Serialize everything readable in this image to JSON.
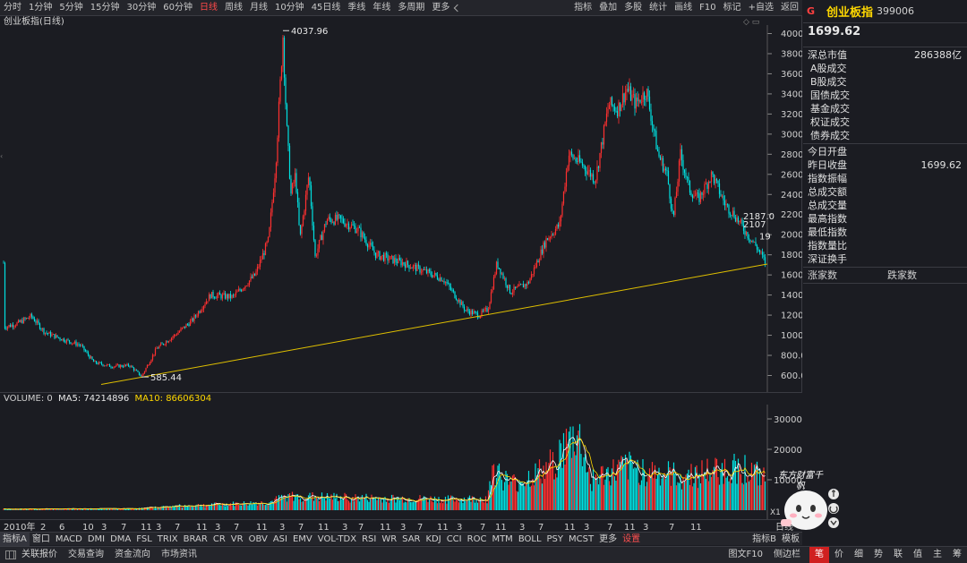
{
  "toolbar": {
    "periods": [
      "分时",
      "1分钟",
      "5分钟",
      "15分钟",
      "30分钟",
      "60分钟",
      "日线",
      "周线",
      "月线",
      "10分钟",
      "45日线",
      "季线",
      "年线",
      "多周期",
      "更多"
    ],
    "active_period": "日线",
    "right_items": [
      "指标",
      "叠加",
      "多股",
      "统计",
      "画线",
      "F10",
      "标记",
      "+自选",
      "返回"
    ]
  },
  "chart": {
    "title": "创业板指(日线)",
    "y_ticks": [
      "4000",
      "3800",
      "3600",
      "3400",
      "3200",
      "3000",
      "2800",
      "2600",
      "2400",
      "2200",
      "2000",
      "1800",
      "1600",
      "1400",
      "1200",
      "1000",
      "800.0",
      "600.0"
    ],
    "high_label": "4037.96",
    "low_label": "585.44",
    "right_labels": [
      "2187.0",
      "2107",
      "19"
    ],
    "ctrl_icons": "◇ ▭"
  },
  "volume": {
    "label": "VOLUME: 0",
    "ma5": "MA5: 74214896",
    "ma10": "MA10: 86606304",
    "y_ticks": [
      "30000",
      "20000",
      "10000"
    ],
    "unit": "X1"
  },
  "date_axis": {
    "labels": [
      "2010年",
      "2",
      "6",
      "10",
      "3",
      "7",
      "11",
      "3",
      "7",
      "11",
      "3",
      "7",
      "11",
      "3",
      "7",
      "11",
      "3",
      "7",
      "11",
      "3",
      "7",
      "11",
      "3",
      "7",
      "11",
      "3",
      "7",
      "11",
      "3",
      "7",
      "11",
      "3",
      "7",
      "11"
    ],
    "right": "日线"
  },
  "indicator_tabs": {
    "items": [
      "指标A",
      "窗口",
      "MACD",
      "DMI",
      "DMA",
      "FSL",
      "TRIX",
      "BRAR",
      "CR",
      "VR",
      "OBV",
      "ASI",
      "EMV",
      "VOL-TDX",
      "RSI",
      "WR",
      "SAR",
      "KDJ",
      "CCI",
      "ROC",
      "MTM",
      "BOLL",
      "PSY",
      "MCST",
      "更多"
    ],
    "settings": "设置",
    "right": [
      "指标B",
      "模板"
    ]
  },
  "statusbar": {
    "items": [
      "关联报价",
      "交易查询",
      "资金流向",
      "市场资讯"
    ],
    "right_items": [
      "图文F10",
      "侧边栏"
    ],
    "tabs": [
      "笔",
      "价",
      "细",
      "势",
      "联",
      "值",
      "主",
      "筹"
    ],
    "active_tab": "笔"
  },
  "panel": {
    "badge": "G",
    "name": "创业板指",
    "code": "399006",
    "price": "1699.62",
    "market_cap_label": "深总市值",
    "market_cap_value": "286388亿",
    "volume_rows": [
      "A股成交",
      "B股成交",
      "国债成交",
      "基金成交",
      "权证成交",
      "债券成交"
    ],
    "stats_rows": [
      {
        "label": "今日开盘",
        "value": ""
      },
      {
        "label": "昨日收盘",
        "value": "1699.62"
      },
      {
        "label": "指数振幅",
        "value": ""
      },
      {
        "label": "总成交额",
        "value": ""
      },
      {
        "label": "总成交量",
        "value": ""
      },
      {
        "label": "最高指数",
        "value": ""
      },
      {
        "label": "最低指数",
        "value": ""
      },
      {
        "label": "指数量比",
        "value": ""
      },
      {
        "label": "深证换手",
        "value": ""
      }
    ],
    "up_label": "涨家数",
    "down_label": "跌家数"
  },
  "mascot": {
    "caption": "东方财富千帆"
  },
  "colors": {
    "up": "#ff3030",
    "down": "#00e0e0",
    "ma5": "#ffffff",
    "ma10": "#ffd800",
    "trendline": "#e0c000",
    "accent": "#ff4a4a"
  }
}
